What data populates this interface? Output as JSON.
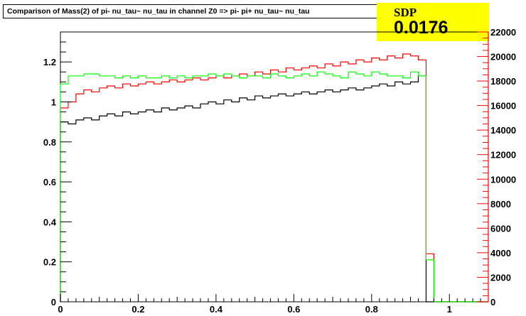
{
  "header": {
    "title": "Comparison of Mass(2) of pi- nu_tau~ nu_tau in channel Z0 => pi- pi+ nu_tau~ nu_tau",
    "sdp_label": "SDP",
    "sdp_value": "0.0176"
  },
  "chart_data": {
    "type": "histogram",
    "title": "Comparison of Mass(2) of pi- nu_tau~ nu_tau in channel Z0 => pi- pi+ nu_tau~ nu_tau",
    "xlim": [
      0,
      1.1
    ],
    "ylim_left": [
      0,
      1.35
    ],
    "ylim_right": [
      0,
      22000
    ],
    "x_ticks": [
      "0",
      "0.2",
      "0.4",
      "0.6",
      "0.8",
      "1"
    ],
    "y_left_ticks": [
      "0",
      "0.2",
      "0.4",
      "0.6",
      "0.8",
      "1",
      "1.2"
    ],
    "y_right_ticks": [
      "0",
      "2000",
      "4000",
      "6000",
      "8000",
      "10000",
      "12000",
      "14000",
      "16000",
      "18000",
      "20000",
      "22000"
    ],
    "colors": {
      "axis_right": "#ff0000",
      "black": "#000000",
      "red": "#ff0000",
      "green": "#00ff00"
    },
    "bin_width": 0.02,
    "series": [
      {
        "color": "black",
        "axis": "left",
        "values": [
          0.9,
          0.89,
          0.91,
          0.92,
          0.91,
          0.93,
          0.94,
          0.93,
          0.95,
          0.94,
          0.95,
          0.96,
          0.95,
          0.97,
          0.96,
          0.97,
          0.98,
          0.97,
          0.99,
          1.0,
          0.99,
          1.01,
          1.0,
          1.02,
          1.01,
          1.03,
          1.02,
          1.03,
          1.04,
          1.03,
          1.04,
          1.05,
          1.04,
          1.05,
          1.06,
          1.05,
          1.06,
          1.07,
          1.06,
          1.07,
          1.08,
          1.09,
          1.08,
          1.1,
          1.09,
          1.1,
          1.13,
          0.0,
          0.0,
          0.0,
          0.0,
          0.0,
          0.0,
          0.0,
          0.0
        ]
      },
      {
        "color": "red",
        "axis": "left",
        "values": [
          0.97,
          1.0,
          1.04,
          1.06,
          1.05,
          1.07,
          1.08,
          1.07,
          1.09,
          1.08,
          1.09,
          1.1,
          1.09,
          1.1,
          1.11,
          1.1,
          1.11,
          1.12,
          1.11,
          1.12,
          1.13,
          1.12,
          1.13,
          1.14,
          1.13,
          1.15,
          1.14,
          1.16,
          1.15,
          1.17,
          1.16,
          1.17,
          1.18,
          1.17,
          1.19,
          1.18,
          1.2,
          1.19,
          1.21,
          1.2,
          1.22,
          1.21,
          1.23,
          1.22,
          1.24,
          1.23,
          1.21,
          0.24,
          0.0,
          0.0,
          0.0,
          0.0,
          0.0,
          0.0,
          0.0
        ]
      },
      {
        "color": "green",
        "axis": "left",
        "values": [
          1.09,
          1.13,
          1.13,
          1.14,
          1.14,
          1.13,
          1.13,
          1.12,
          1.13,
          1.12,
          1.13,
          1.12,
          1.12,
          1.13,
          1.12,
          1.13,
          1.12,
          1.13,
          1.13,
          1.14,
          1.13,
          1.14,
          1.13,
          1.12,
          1.13,
          1.13,
          1.12,
          1.14,
          1.13,
          1.12,
          1.13,
          1.14,
          1.13,
          1.15,
          1.14,
          1.13,
          1.12,
          1.15,
          1.14,
          1.13,
          1.15,
          1.14,
          1.13,
          1.13,
          1.12,
          1.15,
          1.13,
          0.21,
          0.0,
          0.0,
          0.0,
          0.0,
          0.0,
          0.0,
          0.0
        ]
      }
    ]
  }
}
